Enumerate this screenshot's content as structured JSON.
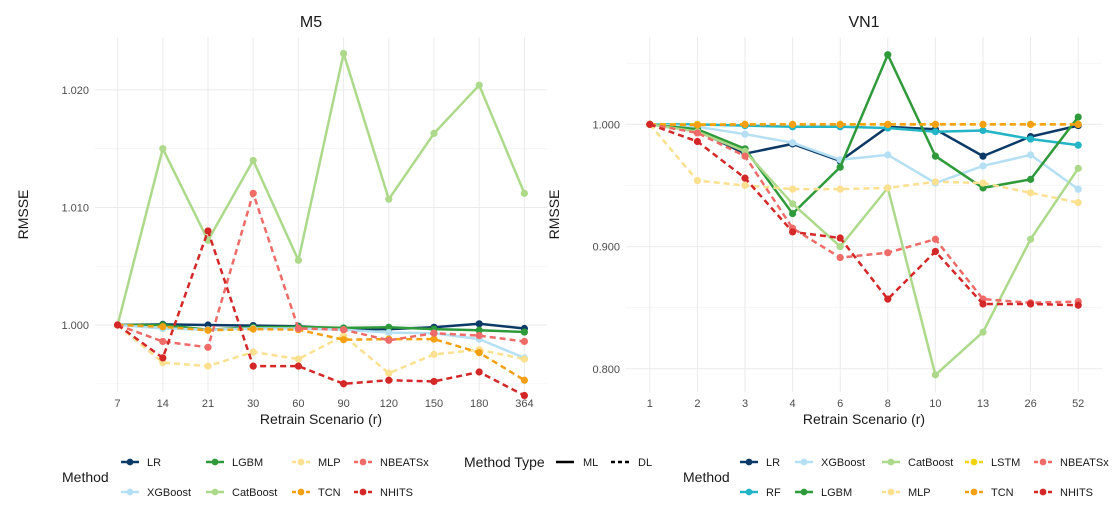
{
  "chart_data": [
    {
      "type": "line",
      "title": "M5",
      "xlabel": "Retrain Scenario (r)",
      "ylabel": "RMSSE",
      "categories": [
        "7",
        "14",
        "21",
        "30",
        "60",
        "90",
        "120",
        "150",
        "180",
        "364"
      ],
      "yticks": [
        1.0,
        1.01,
        1.02
      ],
      "ytick_labels": [
        "1.000",
        "1.010",
        "1.020"
      ],
      "ylim": [
        0.9943,
        1.0245
      ],
      "grid": true,
      "series": [
        {
          "name": "LR",
          "color": "#0b3a66",
          "dashed": false,
          "values": [
            1.0,
            1.00005,
            1.0,
            0.99995,
            0.9999,
            0.99965,
            0.99965,
            0.9998,
            1.0001,
            0.9997
          ]
        },
        {
          "name": "LGBM",
          "color": "#2e9a3a",
          "dashed": false,
          "values": [
            1.0,
            1.0,
            0.9996,
            0.9998,
            0.99985,
            0.99975,
            0.9998,
            0.99965,
            0.99955,
            0.9994
          ]
        },
        {
          "name": "XGBoost",
          "color": "#b5e0f4",
          "dashed": false,
          "values": [
            1.0,
            0.9997,
            0.9996,
            0.9997,
            0.9997,
            0.9996,
            0.99935,
            0.9993,
            0.9988,
            0.9972
          ]
        },
        {
          "name": "CatBoost",
          "color": "#acda8a",
          "dashed": false,
          "values": [
            1.0,
            1.015,
            1.0072,
            1.014,
            1.0055,
            1.0231,
            1.0107,
            1.0163,
            1.0204,
            1.0112
          ]
        },
        {
          "name": "MLP",
          "color": "#fbe090",
          "dashed": true,
          "values": [
            1.0,
            0.9968,
            0.9965,
            0.9977,
            0.9971,
            0.9991,
            0.9959,
            0.9975,
            0.9979,
            0.9971
          ]
        },
        {
          "name": "TCN",
          "color": "#f4a012",
          "dashed": true,
          "values": [
            1.0,
            0.99985,
            0.99955,
            0.99965,
            0.9996,
            0.99875,
            0.9988,
            0.9988,
            0.99765,
            0.9953
          ]
        },
        {
          "name": "NBEATSx",
          "color": "#ee6b68",
          "dashed": true,
          "values": [
            1.0,
            0.9986,
            0.9981,
            1.0112,
            0.9997,
            0.9996,
            0.9987,
            0.9993,
            0.9991,
            0.9986
          ]
        },
        {
          "name": "NHITS",
          "color": "#d42828",
          "dashed": true,
          "values": [
            1.0,
            0.9972,
            1.008,
            0.9965,
            0.9965,
            0.995,
            0.9953,
            0.9952,
            0.996,
            0.994
          ]
        }
      ]
    },
    {
      "type": "line",
      "title": "VN1",
      "xlabel": "Retrain Scenario (r)",
      "ylabel": "RMSSE",
      "categories": [
        "1",
        "2",
        "3",
        "4",
        "6",
        "8",
        "10",
        "13",
        "26",
        "52"
      ],
      "yticks": [
        0.8,
        0.9,
        1.0
      ],
      "ytick_labels": [
        "0.800",
        "0.900",
        "1.000"
      ],
      "ylim": [
        0.781,
        1.0715
      ],
      "grid": true,
      "series": [
        {
          "name": "LR",
          "color": "#0b3a66",
          "dashed": false,
          "values": [
            1.0,
            0.995,
            0.976,
            0.984,
            0.97,
            0.998,
            0.996,
            0.974,
            0.99,
            0.999
          ]
        },
        {
          "name": "RF",
          "color": "#23b5c6",
          "dashed": false,
          "values": [
            1.0,
            1.0,
            0.999,
            0.998,
            0.998,
            0.997,
            0.994,
            0.995,
            0.988,
            0.983
          ]
        },
        {
          "name": "XGBoost",
          "color": "#b5e0f4",
          "dashed": false,
          "values": [
            1.0,
            0.998,
            0.992,
            0.985,
            0.971,
            0.975,
            0.952,
            0.966,
            0.975,
            0.947
          ]
        },
        {
          "name": "LGBM",
          "color": "#2e9a3a",
          "dashed": false,
          "values": [
            1.0,
            0.996,
            0.98,
            0.927,
            0.965,
            1.057,
            0.974,
            0.948,
            0.955,
            1.006
          ]
        },
        {
          "name": "CatBoost",
          "color": "#acda8a",
          "dashed": false,
          "values": [
            1.0,
            0.994,
            0.978,
            0.935,
            0.9,
            0.948,
            0.795,
            0.83,
            0.906,
            0.964
          ]
        },
        {
          "name": "MLP",
          "color": "#fbe090",
          "dashed": true,
          "values": [
            1.0,
            0.954,
            0.95,
            0.947,
            0.947,
            0.948,
            0.953,
            0.952,
            0.944,
            0.936
          ]
        },
        {
          "name": "LSTM",
          "color": "#f2d40e",
          "dashed": true,
          "values": [
            1.0,
            1.0,
            1.0,
            1.0,
            1.0,
            1.0,
            1.0,
            1.0,
            1.0,
            1.0
          ]
        },
        {
          "name": "TCN",
          "color": "#f4a012",
          "dashed": true,
          "values": [
            1.0,
            0.9995,
            1.0,
            1.0,
            1.0,
            1.0,
            1.0,
            1.0,
            1.0,
            1.0
          ]
        },
        {
          "name": "NBEATSx",
          "color": "#ee6b68",
          "dashed": true,
          "values": [
            1.0,
            0.993,
            0.974,
            0.915,
            0.891,
            0.895,
            0.906,
            0.857,
            0.854,
            0.855
          ]
        },
        {
          "name": "NHITS",
          "color": "#d42828",
          "dashed": true,
          "values": [
            1.0,
            0.986,
            0.956,
            0.912,
            0.907,
            0.857,
            0.896,
            0.853,
            0.853,
            0.852
          ]
        }
      ]
    }
  ],
  "legends": {
    "left": {
      "title": "Method",
      "items": [
        {
          "label": "LR",
          "color": "#0b3a66",
          "dashed": false
        },
        {
          "label": "XGBoost",
          "color": "#b5e0f4",
          "dashed": false
        },
        {
          "label": "LGBM",
          "color": "#2e9a3a",
          "dashed": false
        },
        {
          "label": "CatBoost",
          "color": "#acda8a",
          "dashed": false
        },
        {
          "label": "MLP",
          "color": "#fbe090",
          "dashed": true
        },
        {
          "label": "TCN",
          "color": "#f4a012",
          "dashed": true
        },
        {
          "label": "NBEATSx",
          "color": "#ee6b68",
          "dashed": true
        },
        {
          "label": "NHITS",
          "color": "#d42828",
          "dashed": true
        }
      ]
    },
    "type": {
      "title": "Method Type",
      "items": [
        {
          "label": "ML",
          "dashed": false
        },
        {
          "label": "DL",
          "dashed": true
        }
      ]
    },
    "right": {
      "title": "Method",
      "items": [
        {
          "label": "LR",
          "color": "#0b3a66",
          "dashed": false
        },
        {
          "label": "RF",
          "color": "#23b5c6",
          "dashed": false
        },
        {
          "label": "XGBoost",
          "color": "#b5e0f4",
          "dashed": false
        },
        {
          "label": "LGBM",
          "color": "#2e9a3a",
          "dashed": false
        },
        {
          "label": "CatBoost",
          "color": "#acda8a",
          "dashed": false
        },
        {
          "label": "MLP",
          "color": "#fbe090",
          "dashed": true
        },
        {
          "label": "LSTM",
          "color": "#f2d40e",
          "dashed": true
        },
        {
          "label": "TCN",
          "color": "#f4a012",
          "dashed": true
        },
        {
          "label": "NBEATSx",
          "color": "#ee6b68",
          "dashed": true
        },
        {
          "label": "NHITS",
          "color": "#d42828",
          "dashed": true
        }
      ]
    }
  }
}
